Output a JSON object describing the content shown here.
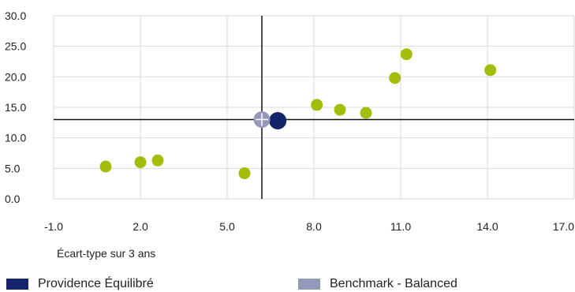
{
  "chart_data": {
    "type": "scatter",
    "title": "",
    "xlabel": "Écart-type sur 3 ans",
    "ylabel": "",
    "xlim": [
      -1,
      17
    ],
    "ylim": [
      0,
      30
    ],
    "x_ticks": [
      "-1.0",
      "2.0",
      "5.0",
      "8.0",
      "11.0",
      "14.0",
      "17.0"
    ],
    "y_ticks": [
      "0.0",
      "5.0",
      "10.0",
      "15.0",
      "20.0",
      "25.0",
      "30.0"
    ],
    "grid": true,
    "reference_lines": {
      "x": 6.2,
      "y": 13.0
    },
    "colors": {
      "peers": "#a4bd0b",
      "providence": "#14246b",
      "benchmark": "#9499ba",
      "axis": "#111111",
      "grid": "#d9d9d9"
    },
    "series": [
      {
        "role": "peers",
        "points": [
          {
            "x": 0.8,
            "y": 5.3
          },
          {
            "x": 2.0,
            "y": 6.0
          },
          {
            "x": 2.6,
            "y": 6.3
          },
          {
            "x": 5.6,
            "y": 4.2
          },
          {
            "x": 8.1,
            "y": 15.4
          },
          {
            "x": 8.9,
            "y": 14.6
          },
          {
            "x": 9.8,
            "y": 14.1
          },
          {
            "x": 10.8,
            "y": 19.8
          },
          {
            "x": 11.2,
            "y": 23.7
          },
          {
            "x": 14.1,
            "y": 21.1
          }
        ]
      },
      {
        "role": "providence",
        "name": "Providence Équilibré",
        "points": [
          {
            "x": 6.75,
            "y": 12.8
          }
        ]
      },
      {
        "role": "benchmark",
        "name": "Benchmark - Balanced",
        "points": [
          {
            "x": 6.2,
            "y": 13.0
          }
        ]
      }
    ],
    "legend": {
      "position": "bottom",
      "items": [
        "Providence Équilibré",
        "Benchmark - Balanced"
      ]
    }
  }
}
